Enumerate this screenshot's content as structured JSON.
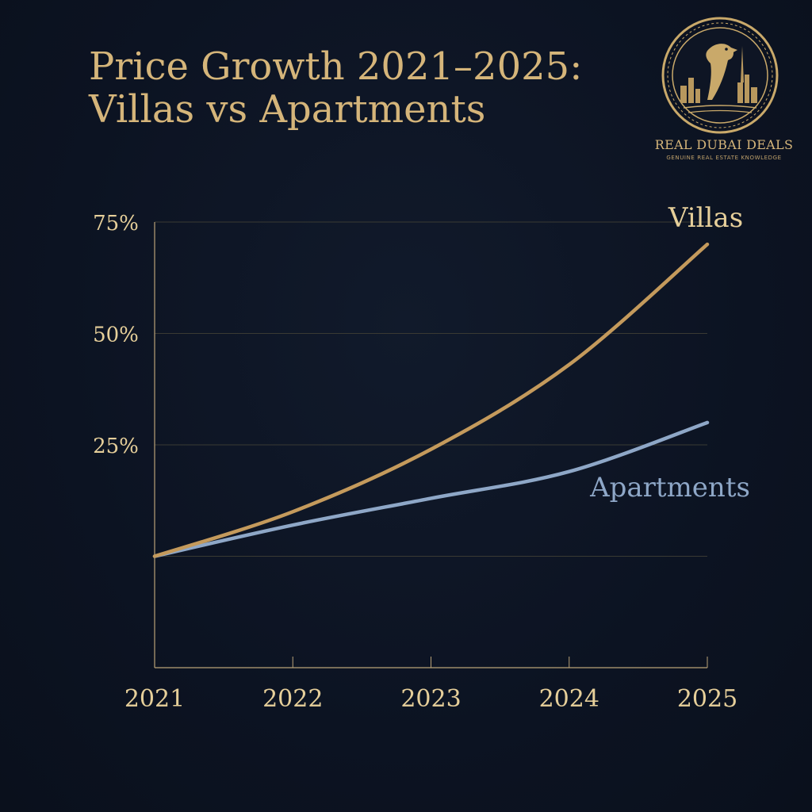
{
  "header": {
    "title_line1": "Price Growth 2021–2025:",
    "title_line2": "Villas vs Apartments"
  },
  "brand": {
    "name": "REAL DUBAI DEALS",
    "tagline": "GENUINE REAL ESTATE KNOWLEDGE",
    "logo_icon": "falcon-skyline-emblem-icon"
  },
  "colors": {
    "background": "#0c1322",
    "gold": "#d5b57a",
    "villas": "#c49a5c",
    "apartments": "#8ea7c7",
    "grid": "#3a3a33",
    "axis": "#b9a277"
  },
  "chart_data": {
    "type": "line",
    "x": [
      2021,
      2022,
      2023,
      2024,
      2025
    ],
    "x_tick_labels": [
      "2021",
      "2022",
      "2023",
      "2024",
      "2025"
    ],
    "y_ticks": [
      25,
      50,
      75
    ],
    "y_tick_labels": [
      "25%",
      "50%",
      "75%"
    ],
    "ylim": [
      -25,
      75
    ],
    "grid": true,
    "series": [
      {
        "name": "Villas",
        "values": [
          0,
          10,
          24,
          43,
          70
        ],
        "color": "#c49a5c"
      },
      {
        "name": "Apartments",
        "values": [
          0,
          7,
          13,
          19,
          30
        ],
        "color": "#8ea7c7"
      }
    ]
  }
}
